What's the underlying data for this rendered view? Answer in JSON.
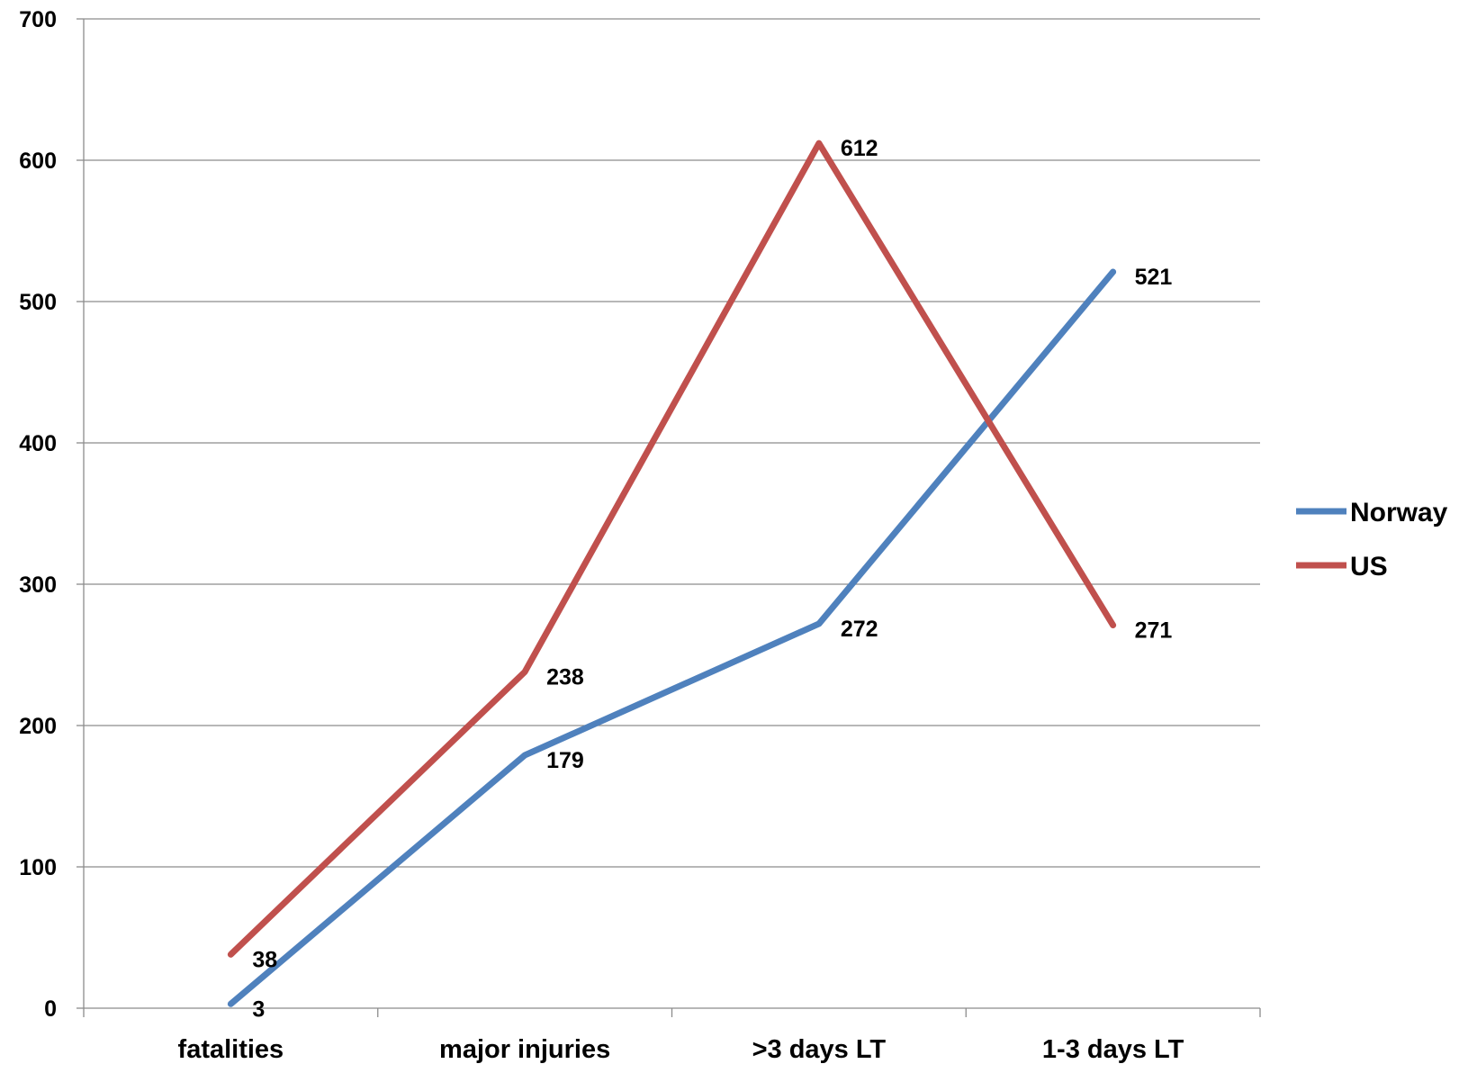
{
  "chart_data": {
    "type": "line",
    "categories": [
      "fatalities",
      "major injuries",
      ">3 days LT",
      "1-3 days LT"
    ],
    "series": [
      {
        "name": "Norway",
        "color": "#4f81bd",
        "values": [
          3,
          179,
          272,
          521
        ]
      },
      {
        "name": "US",
        "color": "#c0504d",
        "values": [
          38,
          238,
          612,
          271
        ]
      }
    ],
    "ylim": [
      0,
      700
    ],
    "yticks": [
      0,
      100,
      200,
      300,
      400,
      500,
      600,
      700
    ],
    "grid": true,
    "legend_position": "right"
  }
}
